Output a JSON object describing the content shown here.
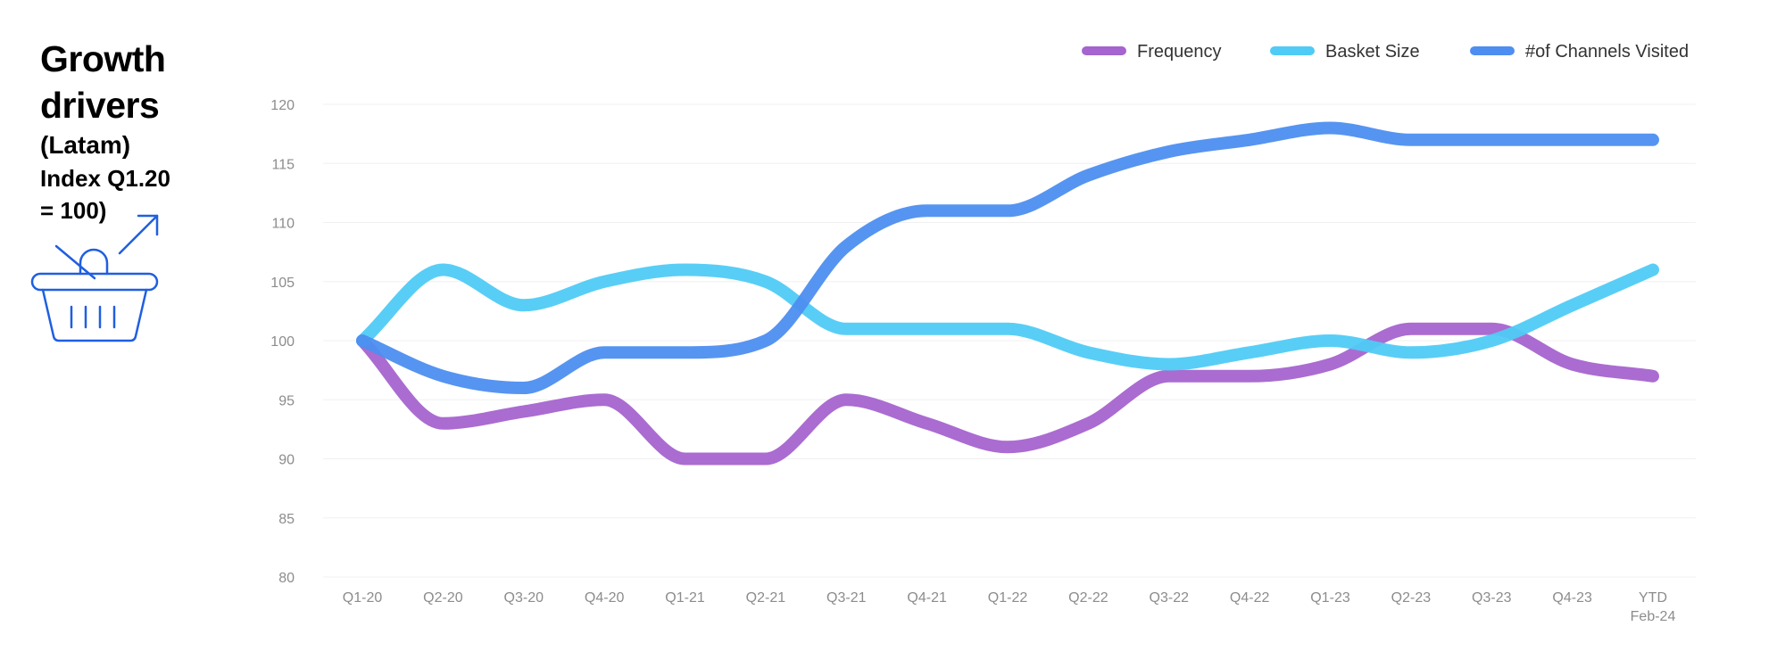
{
  "title": {
    "main": "Growth drivers",
    "sub": "(Latam)",
    "note": "Index Q1.20\n= 100)"
  },
  "icons": {
    "basket": "shopping-basket-growth-icon"
  },
  "colors": {
    "frequency": "#a564cf",
    "basket_size": "#4fcbf6",
    "channels": "#4d8ef0",
    "grid": "#f0f0f0",
    "tick_text": "#8c8c8c",
    "icon": "#1f5fe0"
  },
  "chart_data": {
    "type": "line",
    "title": "",
    "xlabel": "",
    "ylabel": "",
    "categories": [
      "Q1-20",
      "Q2-20",
      "Q3-20",
      "Q4-20",
      "Q1-21",
      "Q2-21",
      "Q3-21",
      "Q4-21",
      "Q1-22",
      "Q2-22",
      "Q3-22",
      "Q4-22",
      "Q1-23",
      "Q2-23",
      "Q3-23",
      "Q4-23",
      "YTD Feb-24"
    ],
    "x_ticks": [
      {
        "line1": "Q1-20",
        "line2": ""
      },
      {
        "line1": "Q2-20",
        "line2": ""
      },
      {
        "line1": "Q3-20",
        "line2": ""
      },
      {
        "line1": "Q4-20",
        "line2": ""
      },
      {
        "line1": "Q1-21",
        "line2": ""
      },
      {
        "line1": "Q2-21",
        "line2": ""
      },
      {
        "line1": "Q3-21",
        "line2": ""
      },
      {
        "line1": "Q4-21",
        "line2": ""
      },
      {
        "line1": "Q1-22",
        "line2": ""
      },
      {
        "line1": "Q2-22",
        "line2": ""
      },
      {
        "line1": "Q3-22",
        "line2": ""
      },
      {
        "line1": "Q4-22",
        "line2": ""
      },
      {
        "line1": "Q1-23",
        "line2": ""
      },
      {
        "line1": "Q2-23",
        "line2": ""
      },
      {
        "line1": "Q3-23",
        "line2": ""
      },
      {
        "line1": "Q4-23",
        "line2": ""
      },
      {
        "line1": "YTD",
        "line2": "Feb-24"
      }
    ],
    "ylim": [
      80,
      120
    ],
    "yticks": [
      80,
      85,
      90,
      95,
      100,
      105,
      110,
      115,
      120
    ],
    "grid": true,
    "legend": "top-right",
    "series": [
      {
        "name": "Frequency",
        "color": "#a564cf",
        "values": [
          100,
          93,
          94,
          95,
          90,
          90,
          95,
          93,
          91,
          93,
          97,
          97,
          98,
          101,
          101,
          98,
          97
        ]
      },
      {
        "name": "Basket Size",
        "color": "#4fcbf6",
        "values": [
          100,
          106,
          103,
          105,
          106,
          105,
          101,
          101,
          101,
          99,
          98,
          99,
          100,
          99,
          100,
          103,
          106
        ]
      },
      {
        "name": "#of Channels Visited",
        "color": "#4d8ef0",
        "values": [
          100,
          97,
          96,
          99,
          99,
          100,
          108,
          111,
          111,
          114,
          116,
          117,
          118,
          117,
          117,
          117,
          117
        ]
      }
    ]
  }
}
